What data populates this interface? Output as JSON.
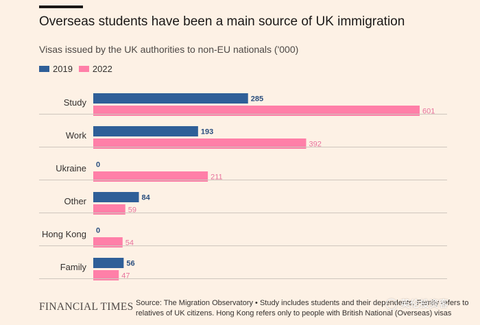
{
  "header": {
    "title": "Overseas students have been a main source of UK immigration",
    "subtitle": "Visas issued by the UK authorities to non-EU nationals ('000)"
  },
  "colors": {
    "series_2019": "#2f5f98",
    "series_2022": "#ff7fa8",
    "label_2019": "#2a4e7e",
    "label_2022": "#e8739d",
    "grid": "#cec6bd",
    "text": "#33302e"
  },
  "chart_data": {
    "type": "bar",
    "orientation": "horizontal",
    "title": "Overseas students have been a main source of UK immigration",
    "subtitle": "Visas issued by the UK authorities to non-EU nationals ('000)",
    "categories": [
      "Study",
      "Work",
      "Ukraine",
      "Other",
      "Hong Kong",
      "Family"
    ],
    "series": [
      {
        "name": "2019",
        "values": [
          285,
          193,
          0,
          84,
          0,
          56
        ]
      },
      {
        "name": "2022",
        "values": [
          601,
          392,
          211,
          59,
          54,
          47
        ]
      }
    ],
    "xlim": [
      0,
      601
    ],
    "legend_position": "top-left",
    "grid": "horizontal separators between categories"
  },
  "footer": {
    "brand": "FINANCIAL TIMES",
    "source_line1": "Source: The Migration Observatory • Study includes students and their dependents. Family refers to",
    "source_line2": "relatives of UK citizens. Hong Kong refers only to people with British National (Overseas) visas"
  },
  "watermark": {
    "icon": "wechat-icon",
    "text": "英伦投资客"
  }
}
